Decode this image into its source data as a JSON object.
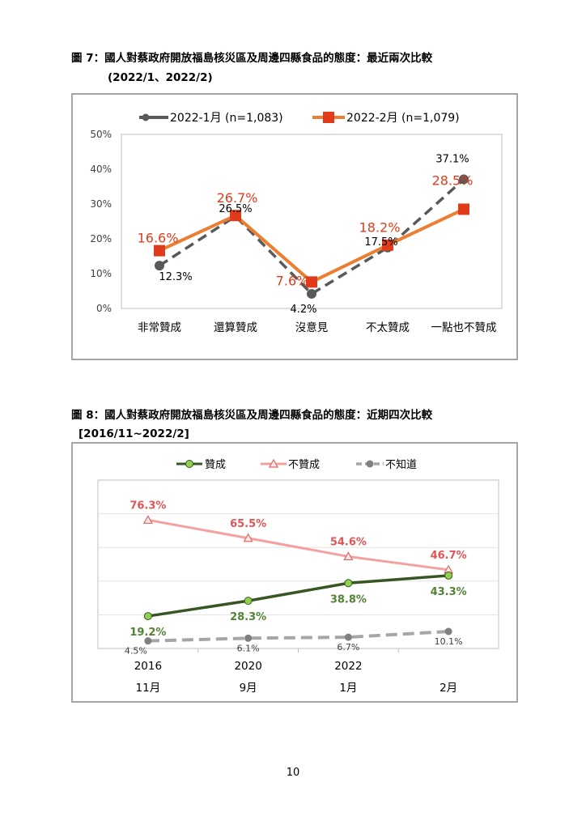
{
  "page_number": "10",
  "figure7": {
    "title": "圖 7：國人對蔡政府開放福島核災區及周邊四縣食品的態度：最近兩次比較",
    "subtitle": "(2022/1、2022/2)"
  },
  "figure8": {
    "title": "圖 8：國人對蔡政府開放福島核災區及周邊四縣食品的態度：近期四次比較",
    "subtitle": "[2016/11~2022/2]"
  },
  "chart_data": [
    {
      "type": "line",
      "title": "",
      "categories": [
        "非常贊成",
        "還算贊成",
        "沒意見",
        "不太贊成",
        "一點也不贊成"
      ],
      "ylim": [
        0,
        50
      ],
      "yticks": [
        "0%",
        "10%",
        "20%",
        "30%",
        "40%",
        "50%"
      ],
      "grid": false,
      "legend_position": "top",
      "series": [
        {
          "name": "2022-1月 (n=1,083)",
          "values": [
            12.3,
            26.5,
            4.2,
            17.5,
            37.1
          ],
          "labels": [
            "12.3%",
            "26.5%",
            "4.2%",
            "17.5%",
            "37.1%"
          ],
          "color": "#595959",
          "style": "dashed",
          "marker": "circle"
        },
        {
          "name": "2022-2月 (n=1,079)",
          "values": [
            16.6,
            26.7,
            7.6,
            18.2,
            28.5
          ],
          "labels": [
            "16.6%",
            "26.7%",
            "7.6%",
            "18.2%",
            "28.5%"
          ],
          "color": "#ed7d31",
          "marker_color": "#e03c1c",
          "label_color": "#e03c1c",
          "style": "solid",
          "marker": "square"
        }
      ]
    },
    {
      "type": "line",
      "title": "",
      "categories_line1": [
        "2016",
        "2020",
        "2022",
        ""
      ],
      "categories_line2": [
        "11月",
        "9月",
        "1月",
        "2月"
      ],
      "ylim": [
        0,
        100
      ],
      "grid": true,
      "legend_position": "top",
      "series": [
        {
          "name": "贊成",
          "values": [
            19.2,
            28.3,
            38.8,
            43.3
          ],
          "labels": [
            "19.2%",
            "28.3%",
            "38.8%",
            "43.3%"
          ],
          "color": "#375623",
          "marker_color": "#92d050",
          "label_color": "#548235",
          "style": "solid",
          "marker": "circle"
        },
        {
          "name": "不贊成",
          "values": [
            76.3,
            65.5,
            54.6,
            46.7
          ],
          "labels": [
            "76.3%",
            "65.5%",
            "54.6%",
            "46.7%"
          ],
          "color": "#f4a0a0",
          "marker_color": "#e06666",
          "label_color": "#e05555",
          "style": "solid",
          "marker": "triangle"
        },
        {
          "name": "不知道",
          "values": [
            4.5,
            6.1,
            6.7,
            10.1
          ],
          "labels": [
            "4.5%",
            "6.1%",
            "6.7%",
            "10.1%"
          ],
          "color": "#a6a6a6",
          "marker_color": "#808080",
          "label_color": "#404040",
          "style": "dashed",
          "marker": "circle"
        }
      ]
    }
  ]
}
